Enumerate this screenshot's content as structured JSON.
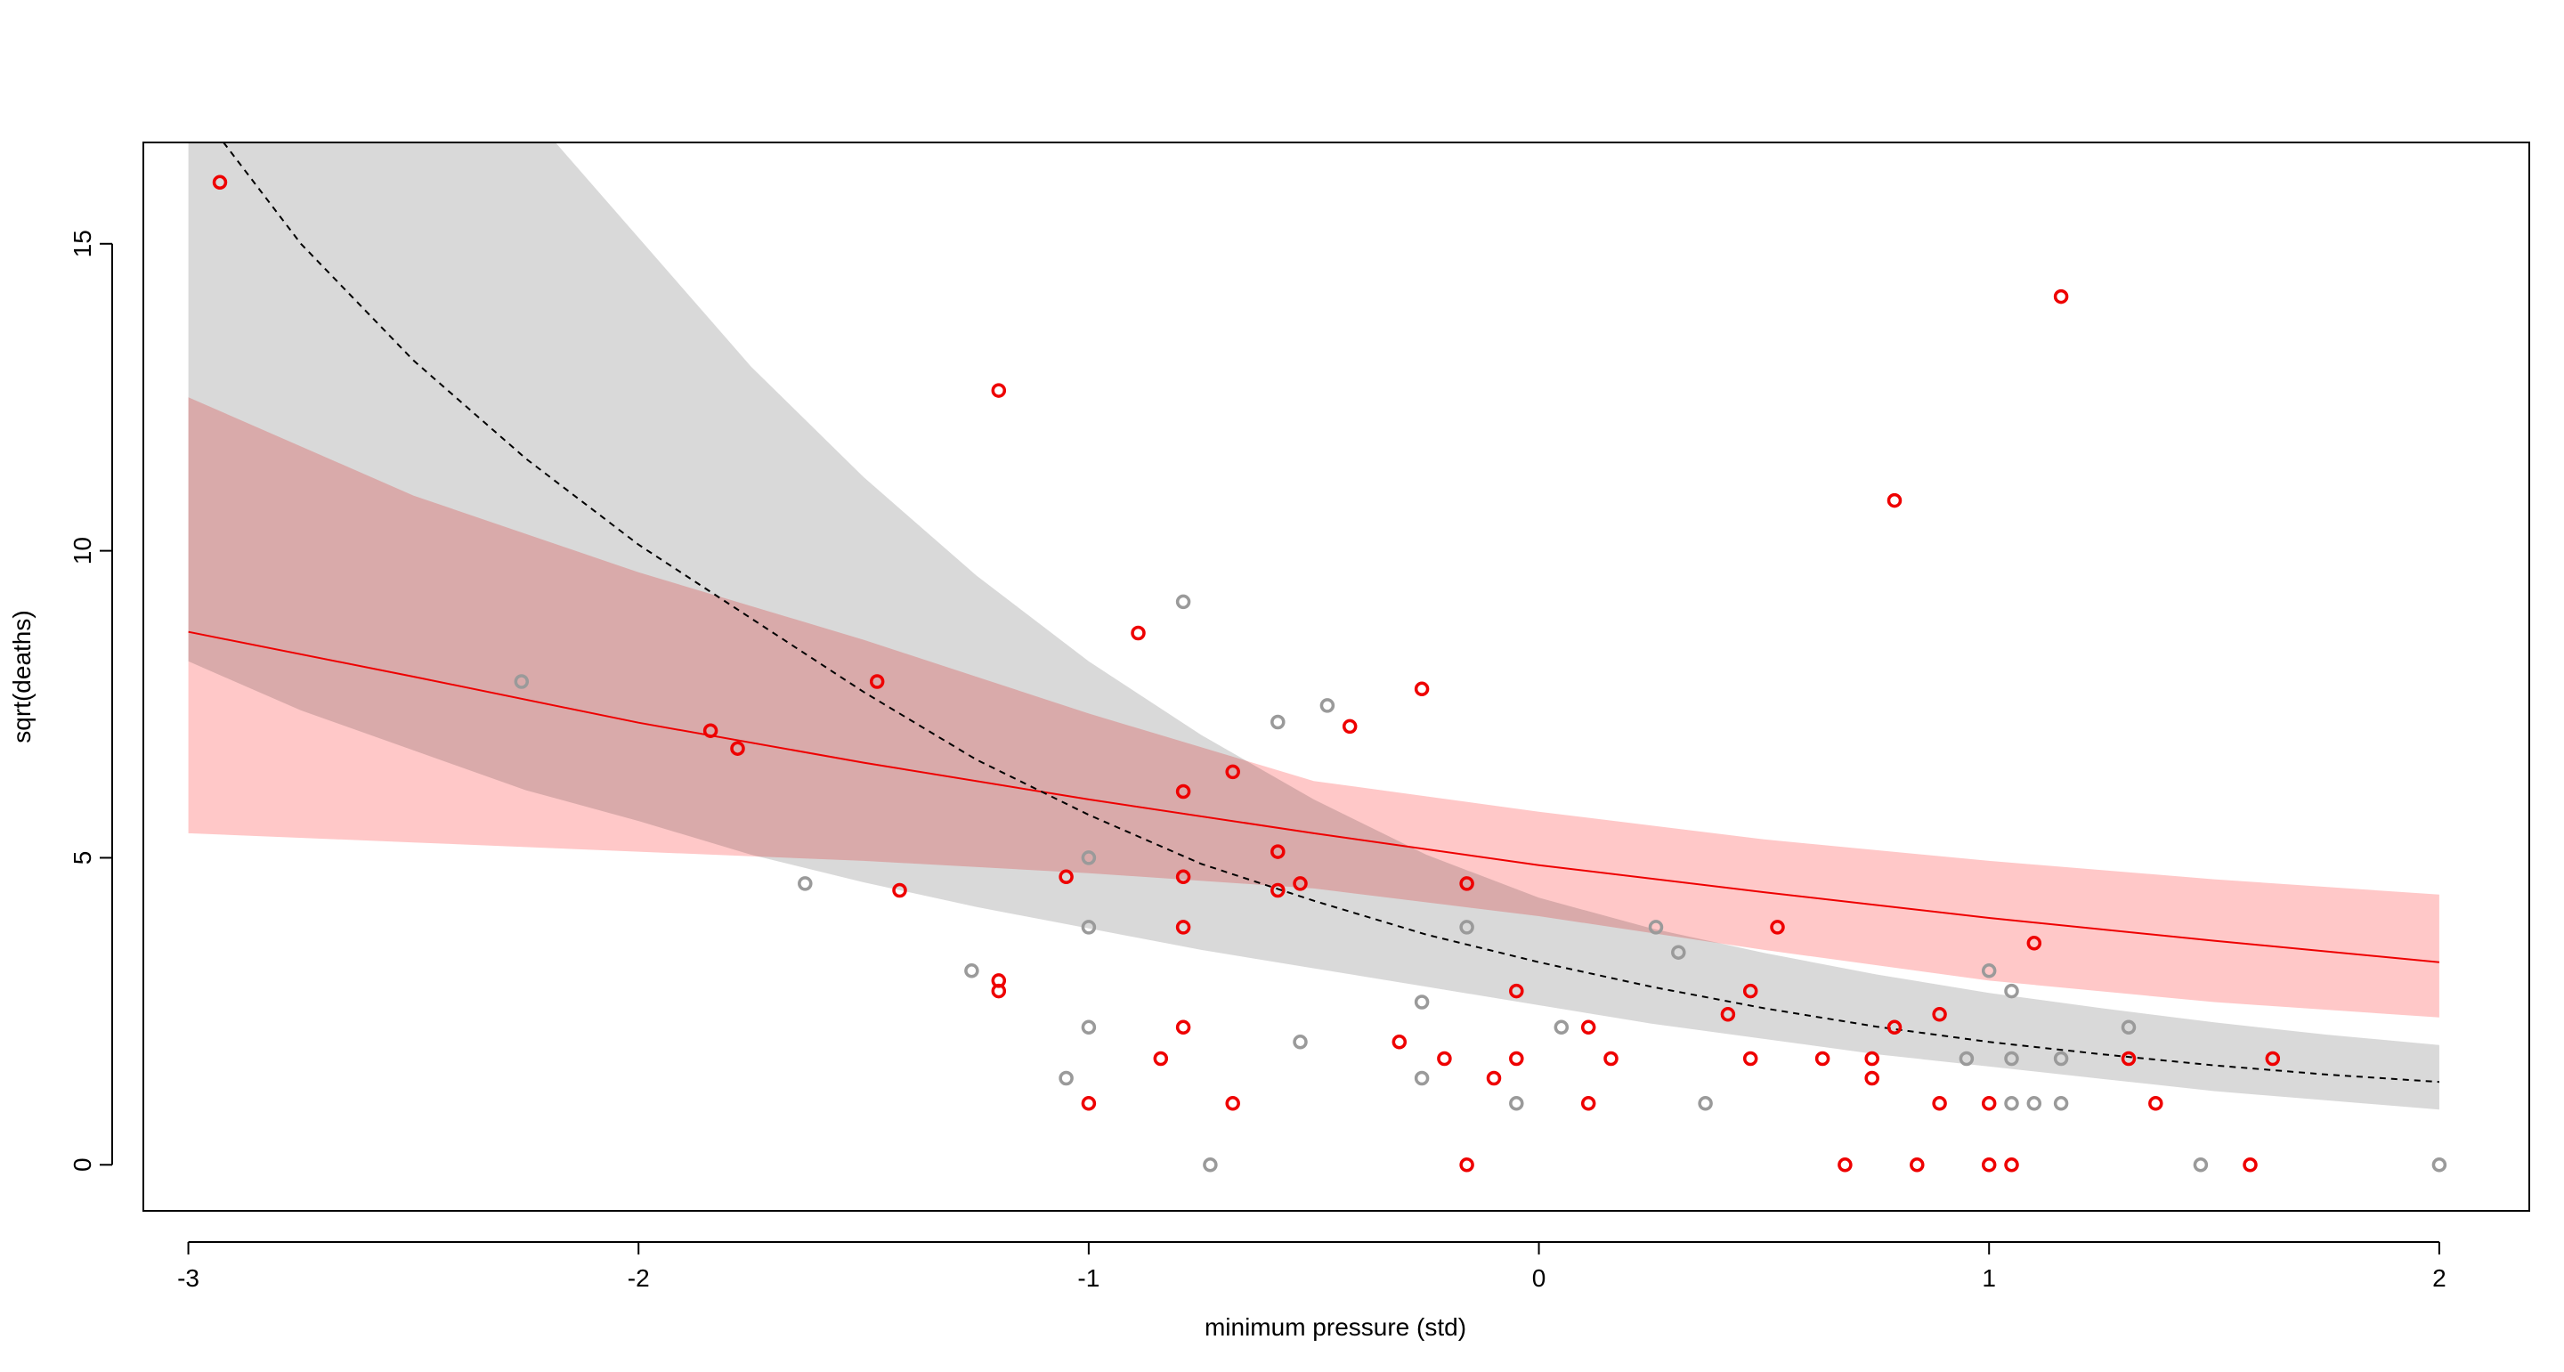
{
  "chart_data": {
    "type": "scatter",
    "title": "",
    "xlabel": "minimum pressure (std)",
    "ylabel": "sqrt(deaths)",
    "xlim": [
      -3.1,
      2.2
    ],
    "ylim": [
      -0.75,
      16.65
    ],
    "x_ticks": [
      -3,
      -2,
      -1,
      0,
      1,
      2
    ],
    "x_tick_labels": [
      "-3",
      "-2",
      "-1",
      "0",
      "1",
      "2"
    ],
    "y_ticks": [
      0,
      5,
      10,
      15
    ],
    "y_tick_labels": [
      "0",
      "5",
      "10",
      "15"
    ],
    "colors": {
      "red": "#ee0000",
      "gray": "#9a9a9a",
      "gray_band": "#d9d9d9",
      "red_band": "#ffc8c8",
      "overlap_band": "#e0aeae",
      "dashed": "#000000"
    },
    "series": [
      {
        "name": "red points",
        "color": "#ee0000",
        "points": [
          [
            -2.93,
            16.0
          ],
          [
            -1.84,
            7.07
          ],
          [
            -1.78,
            6.78
          ],
          [
            -1.47,
            7.87
          ],
          [
            -1.42,
            4.47
          ],
          [
            -1.2,
            12.61
          ],
          [
            -1.2,
            3.0
          ],
          [
            -1.2,
            2.83
          ],
          [
            -1.05,
            4.69
          ],
          [
            -1.0,
            1.0
          ],
          [
            -0.89,
            8.66
          ],
          [
            -0.84,
            1.73
          ],
          [
            -0.79,
            6.08
          ],
          [
            -0.79,
            4.69
          ],
          [
            -0.79,
            3.87
          ],
          [
            -0.79,
            2.24
          ],
          [
            -0.68,
            6.4
          ],
          [
            -0.68,
            1.0
          ],
          [
            -0.58,
            5.1
          ],
          [
            -0.58,
            4.47
          ],
          [
            -0.53,
            4.58
          ],
          [
            -0.42,
            7.14
          ],
          [
            -0.26,
            7.75
          ],
          [
            -0.31,
            2.0
          ],
          [
            -0.21,
            1.73
          ],
          [
            -0.16,
            4.58
          ],
          [
            -0.16,
            0.0
          ],
          [
            -0.1,
            1.41
          ],
          [
            -0.05,
            2.83
          ],
          [
            -0.05,
            1.73
          ],
          [
            0.11,
            2.24
          ],
          [
            0.11,
            1.0
          ],
          [
            0.16,
            1.73
          ],
          [
            0.42,
            2.45
          ],
          [
            0.47,
            2.83
          ],
          [
            0.47,
            1.73
          ],
          [
            0.53,
            3.87
          ],
          [
            0.63,
            1.73
          ],
          [
            0.68,
            0.0
          ],
          [
            0.74,
            1.73
          ],
          [
            0.74,
            1.41
          ],
          [
            0.79,
            10.82
          ],
          [
            0.79,
            2.24
          ],
          [
            0.84,
            0.0
          ],
          [
            0.89,
            2.45
          ],
          [
            0.89,
            1.0
          ],
          [
            1.0,
            1.0
          ],
          [
            1.0,
            0.0
          ],
          [
            1.05,
            0.0
          ],
          [
            1.1,
            3.61
          ],
          [
            1.16,
            14.14
          ],
          [
            1.31,
            1.73
          ],
          [
            1.37,
            1.0
          ],
          [
            1.58,
            0.0
          ],
          [
            1.63,
            1.73
          ]
        ]
      },
      {
        "name": "gray points",
        "color": "#9a9a9a",
        "points": [
          [
            -2.26,
            7.87
          ],
          [
            -1.63,
            4.58
          ],
          [
            -1.26,
            3.16
          ],
          [
            -1.05,
            1.41
          ],
          [
            -1.0,
            5.0
          ],
          [
            -1.0,
            3.87
          ],
          [
            -1.0,
            2.24
          ],
          [
            -0.79,
            9.17
          ],
          [
            -0.73,
            0.0
          ],
          [
            -0.58,
            7.21
          ],
          [
            -0.53,
            2.0
          ],
          [
            -0.47,
            7.48
          ],
          [
            -0.26,
            2.65
          ],
          [
            -0.26,
            1.41
          ],
          [
            -0.16,
            3.87
          ],
          [
            -0.05,
            1.0
          ],
          [
            0.05,
            2.24
          ],
          [
            0.26,
            3.87
          ],
          [
            0.31,
            3.46
          ],
          [
            0.37,
            1.0
          ],
          [
            0.95,
            1.73
          ],
          [
            1.0,
            3.16
          ],
          [
            1.05,
            2.83
          ],
          [
            1.05,
            1.73
          ],
          [
            1.05,
            1.0
          ],
          [
            1.1,
            1.0
          ],
          [
            1.16,
            1.73
          ],
          [
            1.16,
            1.0
          ],
          [
            1.31,
            2.24
          ],
          [
            1.47,
            0.0
          ],
          [
            2.0,
            0.0
          ]
        ]
      }
    ],
    "lines": [
      {
        "name": "red mean line",
        "style": "solid",
        "color": "#ee0000",
        "x": [
          -3.0,
          -2.5,
          -2.0,
          -1.5,
          -1.0,
          -0.5,
          0.0,
          0.5,
          1.0,
          1.5,
          2.0
        ],
        "y": [
          8.68,
          7.95,
          7.2,
          6.55,
          5.95,
          5.4,
          4.88,
          4.44,
          4.02,
          3.65,
          3.3
        ]
      },
      {
        "name": "dashed mean line",
        "style": "dashed",
        "color": "#000000",
        "x": [
          -3.0,
          -2.75,
          -2.5,
          -2.25,
          -2.0,
          -1.75,
          -1.5,
          -1.25,
          -1.0,
          -0.75,
          -0.5,
          -0.25,
          0.0,
          0.25,
          0.5,
          0.75,
          1.0,
          1.25,
          1.5,
          1.75,
          2.0
        ],
        "y": [
          17.4,
          15.0,
          13.1,
          11.5,
          10.1,
          8.9,
          7.7,
          6.6,
          5.7,
          4.9,
          4.3,
          3.75,
          3.3,
          2.9,
          2.55,
          2.25,
          2.0,
          1.8,
          1.62,
          1.47,
          1.35
        ]
      }
    ],
    "bands": [
      {
        "name": "gray interval band",
        "color": "#d9d9d9",
        "x": [
          -3.0,
          -2.75,
          -2.5,
          -2.25,
          -2.0,
          -1.75,
          -1.5,
          -1.25,
          -1.0,
          -0.75,
          -0.5,
          -0.25,
          0.0,
          0.25,
          0.5,
          0.75,
          1.0,
          1.25,
          1.5,
          1.75,
          2.0
        ],
        "lower": [
          8.2,
          7.4,
          6.75,
          6.1,
          5.6,
          5.05,
          4.6,
          4.2,
          3.85,
          3.5,
          3.2,
          2.9,
          2.6,
          2.3,
          2.05,
          1.8,
          1.6,
          1.4,
          1.2,
          1.05,
          0.9
        ],
        "upper": [
          25.0,
          22.0,
          19.5,
          17.2,
          15.1,
          13.0,
          11.2,
          9.6,
          8.2,
          7.0,
          5.95,
          5.05,
          4.35,
          3.85,
          3.45,
          3.1,
          2.8,
          2.55,
          2.32,
          2.12,
          1.95
        ]
      },
      {
        "name": "red interval band",
        "color": "#ffc8c8",
        "x": [
          -3.0,
          -2.5,
          -2.0,
          -1.5,
          -1.0,
          -0.5,
          0.0,
          0.5,
          1.0,
          1.5,
          2.0
        ],
        "lower": [
          5.4,
          5.25,
          5.1,
          4.95,
          4.75,
          4.5,
          4.05,
          3.5,
          3.0,
          2.65,
          2.4
        ],
        "upper": [
          12.5,
          10.9,
          9.65,
          8.55,
          7.35,
          6.25,
          5.75,
          5.3,
          4.95,
          4.65,
          4.4
        ]
      }
    ]
  }
}
